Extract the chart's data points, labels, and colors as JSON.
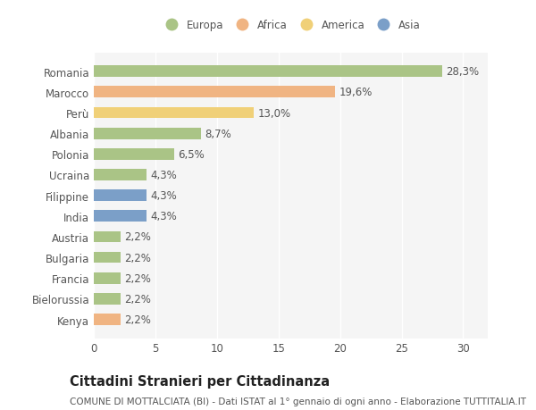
{
  "categories": [
    "Romania",
    "Marocco",
    "Perù",
    "Albania",
    "Polonia",
    "Ucraina",
    "Filippine",
    "India",
    "Austria",
    "Bulgaria",
    "Francia",
    "Bielorussia",
    "Kenya"
  ],
  "values": [
    28.3,
    19.6,
    13.0,
    8.7,
    6.5,
    4.3,
    4.3,
    4.3,
    2.2,
    2.2,
    2.2,
    2.2,
    2.2
  ],
  "labels": [
    "28,3%",
    "19,6%",
    "13,0%",
    "8,7%",
    "6,5%",
    "4,3%",
    "4,3%",
    "4,3%",
    "2,2%",
    "2,2%",
    "2,2%",
    "2,2%",
    "2,2%"
  ],
  "colors": [
    "#aac486",
    "#f0b482",
    "#f0d078",
    "#aac486",
    "#aac486",
    "#aac486",
    "#7b9fc8",
    "#7b9fc8",
    "#aac486",
    "#aac486",
    "#aac486",
    "#aac486",
    "#f0b482"
  ],
  "legend_labels": [
    "Europa",
    "Africa",
    "America",
    "Asia"
  ],
  "legend_colors": [
    "#aac486",
    "#f0b482",
    "#f0d078",
    "#7b9fc8"
  ],
  "title": "Cittadini Stranieri per Cittadinanza",
  "subtitle": "COMUNE DI MOTTALCIATA (BI) - Dati ISTAT al 1° gennaio di ogni anno - Elaborazione TUTTITALIA.IT",
  "xlim": [
    0,
    32
  ],
  "xticks": [
    0,
    5,
    10,
    15,
    20,
    25,
    30
  ],
  "background_color": "#ffffff",
  "plot_bg_color": "#f5f5f5",
  "grid_color": "#ffffff",
  "bar_height": 0.55,
  "label_fontsize": 8.5,
  "tick_fontsize": 8.5,
  "title_fontsize": 10.5,
  "subtitle_fontsize": 7.5,
  "text_color": "#555555"
}
